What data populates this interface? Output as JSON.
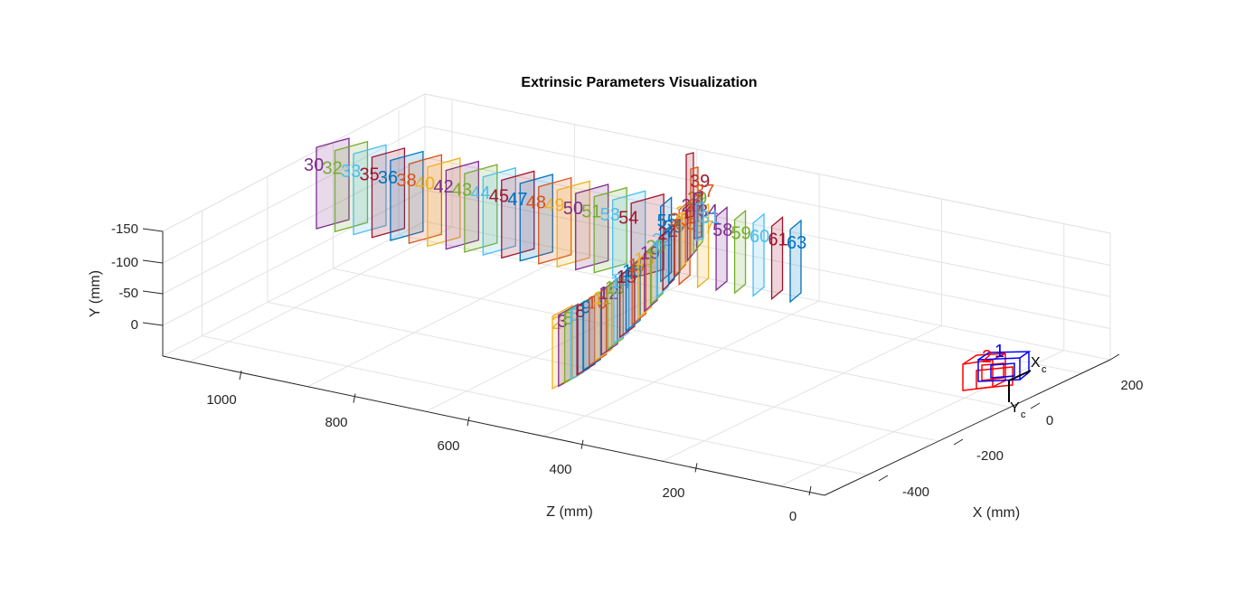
{
  "chart_data": {
    "type": "scatter",
    "subtype": "3d-extrinsics",
    "title": "Extrinsic Parameters Visualization",
    "xlabel": "X (mm)",
    "ylabel": "Y (mm)",
    "zlabel": "Z (mm)",
    "x_ticks": [
      "200",
      "0",
      "-200",
      "-400"
    ],
    "y_ticks": [
      "-150",
      "-100",
      "-50",
      "0"
    ],
    "z_ticks": [
      "1000",
      "800",
      "600",
      "400",
      "200",
      "0"
    ],
    "grid": true,
    "camera_labels": {
      "x": "X",
      "x_sub": "c",
      "y": "Y",
      "y_sub": "c",
      "cam1": "1",
      "cam2": "2"
    },
    "colors": [
      "#0072BD",
      "#D95319",
      "#EDB120",
      "#7E2F8E",
      "#77AC30",
      "#4DBEEE",
      "#A2142F"
    ],
    "views_arm_far": {
      "labels": [
        "30",
        "32",
        "33",
        "35",
        "36",
        "38",
        "40",
        "42",
        "43",
        "44",
        "45",
        "47",
        "48",
        "49",
        "50",
        "51",
        "53",
        "54",
        "55",
        "56",
        "57",
        "58",
        "59",
        "60",
        "61",
        "63"
      ],
      "first_index_color": 3
    },
    "views_arm_near": {
      "labels": [
        "2",
        "3",
        "5",
        "6",
        "8",
        "9",
        "10",
        "11",
        "12",
        "13",
        "14",
        "15",
        "16",
        "17",
        "18",
        "19",
        "20",
        "22",
        "24",
        "25",
        "26",
        "27",
        "28",
        "29"
      ],
      "first_index_color": 2
    },
    "views_vertical": {
      "labels": [
        "39",
        "37",
        "34",
        "31"
      ]
    }
  }
}
